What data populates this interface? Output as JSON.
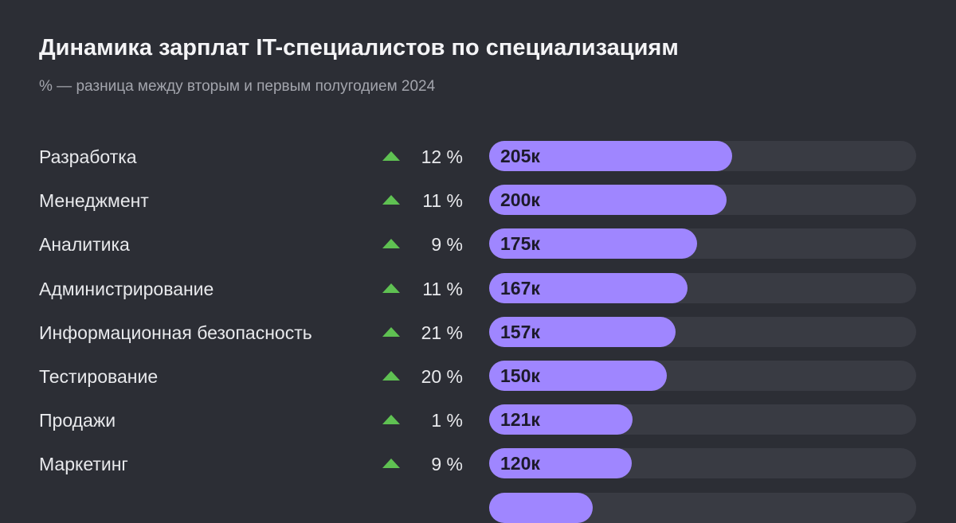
{
  "chart_data": {
    "type": "bar",
    "title": "Динамика зарплат IT-специалистов по специализациям",
    "subtitle": "% — разница между вторым и первым полугодием 2024",
    "colors": {
      "bar": "#9f86ff",
      "track": "#393b43",
      "up": "#5fc152"
    },
    "max": 360,
    "rows": [
      {
        "category": "Разработка",
        "change": "12 %",
        "value": 205,
        "label": "205к"
      },
      {
        "category": "Менеджмент",
        "change": "11 %",
        "value": 200,
        "label": "200к"
      },
      {
        "category": "Аналитика",
        "change": "9 %",
        "value": 175,
        "label": "175к"
      },
      {
        "category": "Администрирование",
        "change": "11 %",
        "value": 167,
        "label": "167к"
      },
      {
        "category": "Информационная безопасность",
        "change": "21 %",
        "value": 157,
        "label": "157к"
      },
      {
        "category": "Тестирование",
        "change": "20 %",
        "value": 150,
        "label": "150к"
      },
      {
        "category": "Продажи",
        "change": "1 %",
        "value": 121,
        "label": "121к"
      },
      {
        "category": "Маркетинг",
        "change": "9 %",
        "value": 120,
        "label": "120к"
      },
      {
        "value": 87
      }
    ]
  }
}
